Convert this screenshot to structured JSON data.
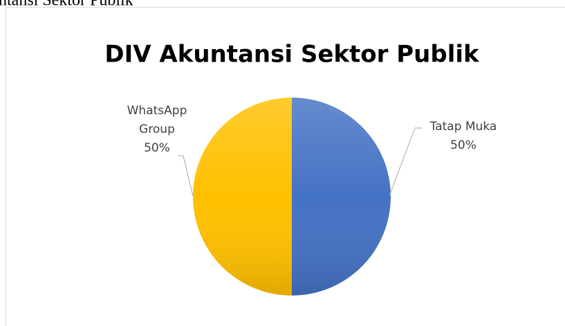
{
  "caption": "ntansi Sektor Publik",
  "chart_data": {
    "type": "pie",
    "title": "DIV Akuntansi Sektor Publik",
    "categories": [
      "Tatap Muka",
      "WhatsApp Group"
    ],
    "values": [
      50,
      50
    ],
    "value_labels": [
      "50%",
      "50%"
    ],
    "colors": [
      "#4472c4",
      "#ffc000"
    ]
  }
}
